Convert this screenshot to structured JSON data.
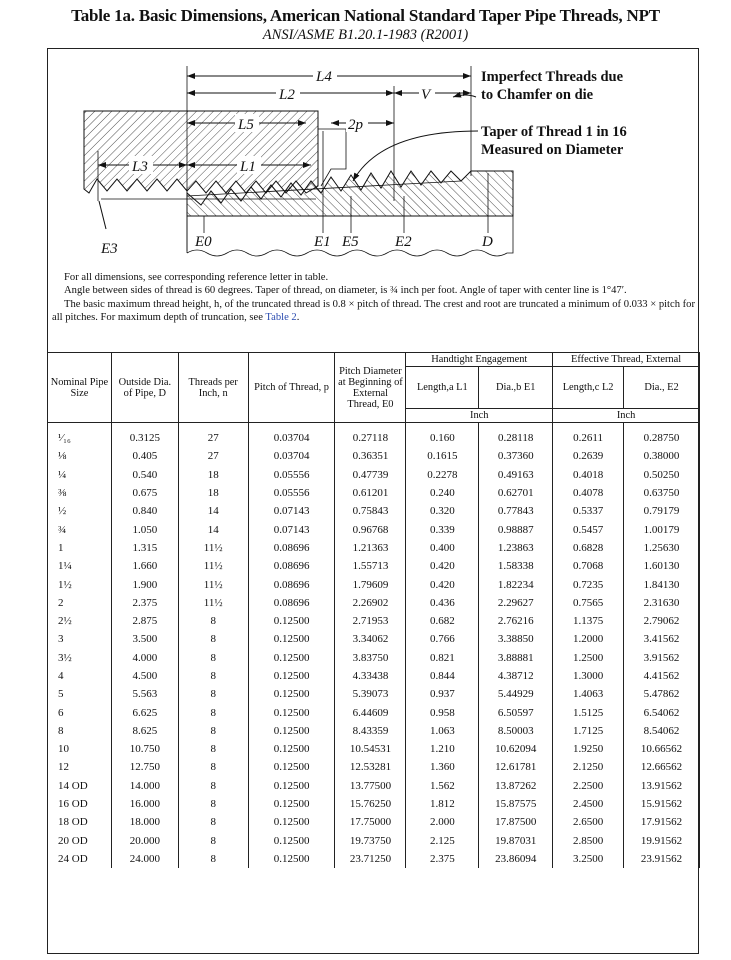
{
  "title": "Table 1a.  Basic Dimensions, American National Standard Taper Pipe Threads, NPT",
  "subtitle": "ANSI/ASME B1.20.1-1983 (R2001)",
  "diagram": {
    "labels": {
      "L4": "L4",
      "L2": "L2",
      "V": "V",
      "L5": "L5",
      "2p": "2p",
      "L3": "L3",
      "L1": "L1",
      "E3": "E3",
      "E0": "E0",
      "E1": "E1",
      "E5": "E5",
      "E2": "E2",
      "D": "D"
    },
    "callout_imperfect": [
      "Imperfect Threads due",
      "to Chamfer on die"
    ],
    "callout_taper": [
      "Taper of Thread 1 in 16",
      "Measured on Diameter"
    ]
  },
  "notes": {
    "line1": "For all dimensions, see  corresponding reference letter in table.",
    "line2": "Angle between sides of thread is 60 degrees. Taper of thread, on diameter, is ¾ inch per foot. Angle of taper with center line is 1°47′.",
    "line3": "The basic maximum thread height, h, of the truncated thread is 0.8 × pitch of thread. The crest and root are truncated a minimum of 0.033 × pitch for all pitches. For maximum depth of truncation, see ",
    "link": "Table 2",
    "line3_end": "."
  },
  "table": {
    "headers": {
      "nominal": "Nominal Pipe Size",
      "outside": "Outside Dia. of Pipe, D",
      "threads": "Threads per Inch, n",
      "pitch": "Pitch of Thread, p",
      "pitchdia": "Pitch Diameter at Beginning of External Thread, E0",
      "handtight": "Handtight Engagement",
      "effective": "Effective Thread, External",
      "l1": "Length,a L1",
      "e1": "Dia.,b E1",
      "l2": "Length,c L2",
      "e2": "Dia., E2",
      "unit1": "Inch",
      "unit2": "Inch"
    },
    "rows": [
      [
        "¹⁄₁₆",
        "0.3125",
        "27",
        "0.03704",
        "0.27118",
        "0.160",
        "0.28118",
        "0.2611",
        "0.28750"
      ],
      [
        "⅛",
        "0.405",
        "27",
        "0.03704",
        "0.36351",
        "0.1615",
        "0.37360",
        "0.2639",
        "0.38000"
      ],
      [
        "¼",
        "0.540",
        "18",
        "0.05556",
        "0.47739",
        "0.2278",
        "0.49163",
        "0.4018",
        "0.50250"
      ],
      [
        "⅜",
        "0.675",
        "18",
        "0.05556",
        "0.61201",
        "0.240",
        "0.62701",
        "0.4078",
        "0.63750"
      ],
      [
        "½",
        "0.840",
        "14",
        "0.07143",
        "0.75843",
        "0.320",
        "0.77843",
        "0.5337",
        "0.79179"
      ],
      [
        "¾",
        "1.050",
        "14",
        "0.07143",
        "0.96768",
        "0.339",
        "0.98887",
        "0.5457",
        "1.00179"
      ],
      [
        "1",
        "1.315",
        "11½",
        "0.08696",
        "1.21363",
        "0.400",
        "1.23863",
        "0.6828",
        "1.25630"
      ],
      [
        "1¼",
        "1.660",
        "11½",
        "0.08696",
        "1.55713",
        "0.420",
        "1.58338",
        "0.7068",
        "1.60130"
      ],
      [
        "1½",
        "1.900",
        "11½",
        "0.08696",
        "1.79609",
        "0.420",
        "1.82234",
        "0.7235",
        "1.84130"
      ],
      [
        "2",
        "2.375",
        "11½",
        "0.08696",
        "2.26902",
        "0.436",
        "2.29627",
        "0.7565",
        "2.31630"
      ],
      [
        "2½",
        "2.875",
        "8",
        "0.12500",
        "2.71953",
        "0.682",
        "2.76216",
        "1.1375",
        "2.79062"
      ],
      [
        "3",
        "3.500",
        "8",
        "0.12500",
        "3.34062",
        "0.766",
        "3.38850",
        "1.2000",
        "3.41562"
      ],
      [
        "3½",
        "4.000",
        "8",
        "0.12500",
        "3.83750",
        "0.821",
        "3.88881",
        "1.2500",
        "3.91562"
      ],
      [
        "4",
        "4.500",
        "8",
        "0.12500",
        "4.33438",
        "0.844",
        "4.38712",
        "1.3000",
        "4.41562"
      ],
      [
        "5",
        "5.563",
        "8",
        "0.12500",
        "5.39073",
        "0.937",
        "5.44929",
        "1.4063",
        "5.47862"
      ],
      [
        "6",
        "6.625",
        "8",
        "0.12500",
        "6.44609",
        "0.958",
        "6.50597",
        "1.5125",
        "6.54062"
      ],
      [
        "8",
        "8.625",
        "8",
        "0.12500",
        "8.43359",
        "1.063",
        "8.50003",
        "1.7125",
        "8.54062"
      ],
      [
        "10",
        "10.750",
        "8",
        "0.12500",
        "10.54531",
        "1.210",
        "10.62094",
        "1.9250",
        "10.66562"
      ],
      [
        "12",
        "12.750",
        "8",
        "0.12500",
        "12.53281",
        "1.360",
        "12.61781",
        "2.1250",
        "12.66562"
      ],
      [
        "14 OD",
        "14.000",
        "8",
        "0.12500",
        "13.77500",
        "1.562",
        "13.87262",
        "2.2500",
        "13.91562"
      ],
      [
        "16 OD",
        "16.000",
        "8",
        "0.12500",
        "15.76250",
        "1.812",
        "15.87575",
        "2.4500",
        "15.91562"
      ],
      [
        "18 OD",
        "18.000",
        "8",
        "0.12500",
        "17.75000",
        "2.000",
        "17.87500",
        "2.6500",
        "17.91562"
      ],
      [
        "20 OD",
        "20.000",
        "8",
        "0.12500",
        "19.73750",
        "2.125",
        "19.87031",
        "2.8500",
        "19.91562"
      ],
      [
        "24 OD",
        "24.000",
        "8",
        "0.12500",
        "23.71250",
        "2.375",
        "23.86094",
        "3.2500",
        "23.91562"
      ]
    ]
  },
  "colors": {
    "link": "#2a4bb0",
    "ink": "#111111"
  }
}
